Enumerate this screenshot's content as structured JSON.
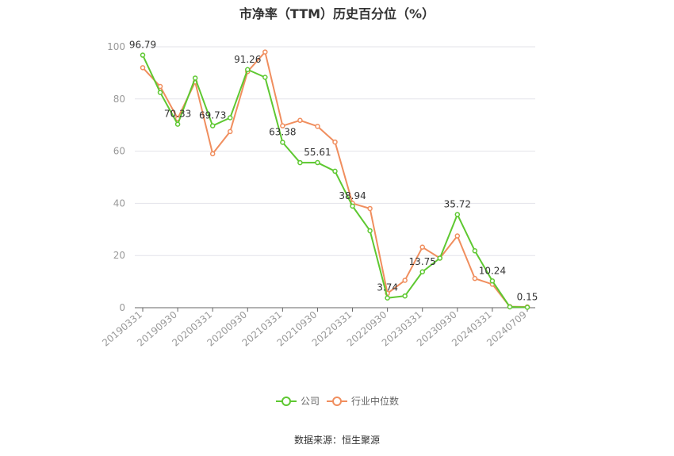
{
  "page": {
    "title": "市净率（TTM）历史百分位（%）",
    "source": "数据来源：恒生聚源"
  },
  "chart_data": {
    "type": "line",
    "title": "市净率（TTM）历史百分位（%）",
    "xlabel": "",
    "ylabel": "",
    "ylim": [
      0,
      100
    ],
    "yticks": [
      0,
      20,
      40,
      60,
      80,
      100
    ],
    "grid": true,
    "legend_position": "bottom",
    "x": [
      "20190331",
      "20190630",
      "20190930",
      "20191231",
      "20200331",
      "20200630",
      "20200930",
      "20201231",
      "20210331",
      "20210630",
      "20210930",
      "20211231",
      "20220331",
      "20220630",
      "20220930",
      "20221231",
      "20230331",
      "20230630",
      "20230930",
      "20231231",
      "20240331",
      "20240630",
      "20240709"
    ],
    "xtick_labels": [
      "20190331",
      "20190930",
      "20200331",
      "20200930",
      "20210331",
      "20210930",
      "20220331",
      "20220930",
      "20230331",
      "20230930",
      "20240331",
      "20240709"
    ],
    "series": [
      {
        "name": "公司",
        "color": "#5ec831",
        "values": [
          96.79,
          82.5,
          70.33,
          88.0,
          69.73,
          72.8,
          91.26,
          88.3,
          63.38,
          55.6,
          55.61,
          52.3,
          38.94,
          29.5,
          3.74,
          4.5,
          13.75,
          19.0,
          35.72,
          21.8,
          10.24,
          0.3,
          0.15
        ],
        "labels": {
          "0": "96.79",
          "2": "70.33",
          "4": "69.73",
          "6": "91.26",
          "8": "63.38",
          "10": "55.61",
          "12": "38.94",
          "14": "3.74",
          "16": "13.75",
          "18": "35.72",
          "20": "10.24",
          "22": "0.15"
        }
      },
      {
        "name": "行业中位数",
        "color": "#f08e5e",
        "values": [
          92.0,
          84.8,
          72.5,
          86.5,
          59.0,
          67.5,
          90.5,
          98.0,
          69.7,
          71.8,
          69.5,
          63.5,
          40.0,
          38.0,
          5.5,
          10.5,
          23.2,
          19.0,
          27.5,
          11.2,
          9.0,
          0.4,
          0.3
        ]
      }
    ]
  }
}
